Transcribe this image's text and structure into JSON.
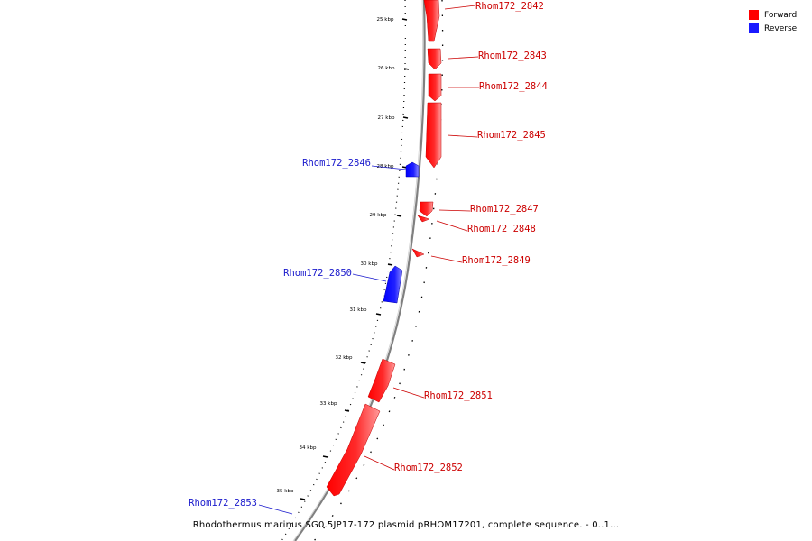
{
  "legend": {
    "forward_label": "Forward",
    "reverse_label": "Reverse",
    "forward_color": "#ff0000",
    "reverse_color": "#1a1aff"
  },
  "caption": "Rhodothermus marinus SG0.5JP17-172 plasmid pRHOM17201, complete sequence. - 0..1...",
  "ticks": [
    "25 kbp",
    "26 kbp",
    "27 kbp",
    "28 kbp",
    "29 kbp",
    "30 kbp",
    "31 kbp",
    "32 kbp",
    "33 kbp",
    "34 kbp",
    "35 kbp"
  ],
  "genes": [
    {
      "name": "Rhom172_2842",
      "strand": "forward"
    },
    {
      "name": "Rhom172_2843",
      "strand": "forward"
    },
    {
      "name": "Rhom172_2844",
      "strand": "forward"
    },
    {
      "name": "Rhom172_2845",
      "strand": "forward"
    },
    {
      "name": "Rhom172_2846",
      "strand": "reverse"
    },
    {
      "name": "Rhom172_2847",
      "strand": "forward"
    },
    {
      "name": "Rhom172_2848",
      "strand": "forward"
    },
    {
      "name": "Rhom172_2849",
      "strand": "forward"
    },
    {
      "name": "Rhom172_2850",
      "strand": "reverse"
    },
    {
      "name": "Rhom172_2851",
      "strand": "forward"
    },
    {
      "name": "Rhom172_2852",
      "strand": "forward"
    },
    {
      "name": "Rhom172_2853",
      "strand": "reverse"
    }
  ]
}
